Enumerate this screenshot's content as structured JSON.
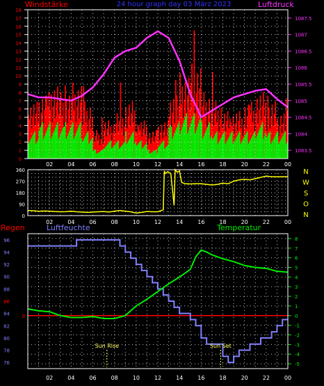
{
  "colors": {
    "background": "#000000",
    "frame": "#ffffff",
    "grid": "#c8c8c8",
    "wind_label": "#ff0000",
    "pressure": "#ff33ff",
    "title": "#3333ff",
    "gust": "#ff0000",
    "wind_avg": "#00ee00",
    "direction": "#ffff00",
    "compass": "#ffff00",
    "rain": "#ff0000",
    "humidity": "#8080ff",
    "temperature": "#00ee00",
    "temp_label": "#00ee00",
    "sun": "#ffff66"
  },
  "labels": {
    "title": "24 hour graph day  03 März 2023",
    "wind": "Windstärke",
    "pressure": "Luftdruck",
    "rain": "Regen",
    "humidity": "Luftfeuchte",
    "temperature": "Temperatur",
    "sunrise": "Sun Rise",
    "sunset": "Sun Set"
  },
  "chart_data": [
    {
      "type": "bar",
      "title": "24 hour graph day  03 März 2023",
      "x_ticks": [
        "02",
        "04",
        "06",
        "08",
        "10",
        "12",
        "14",
        "16",
        "18",
        "20",
        "22",
        "00"
      ],
      "xlim_hours": [
        0,
        24
      ],
      "y_left_label": "Windstärke",
      "y_left_ticks": [
        "0",
        "1",
        "2",
        "3",
        "4",
        "5",
        "6",
        "7",
        "8",
        "9",
        "10",
        "11",
        "12",
        "13",
        "14",
        "15",
        "16",
        "17",
        "18"
      ],
      "y_left_lim": [
        0,
        18
      ],
      "y_right_label": "Luftdruck",
      "y_right_ticks": [
        "1083.5",
        "1084",
        "1084.5",
        "1085",
        "1085.5",
        "1086",
        "1086.5",
        "1087",
        "1087.5"
      ],
      "y_right_lim": [
        1083.25,
        1087.75
      ],
      "grid": true,
      "series": [
        {
          "name": "Windstärke",
          "kind": "gust",
          "values_hourly": [
            6,
            7,
            8,
            7,
            8,
            6,
            3,
            4,
            5,
            6,
            4,
            3,
            4,
            7,
            9,
            10,
            7,
            6,
            5,
            5,
            6,
            7,
            6,
            5
          ]
        },
        {
          "name": "Windstärke",
          "kind": "average",
          "values_hourly": [
            3,
            4,
            4,
            4,
            4,
            3,
            1,
            2,
            2,
            3,
            2,
            1,
            2,
            4,
            5,
            5,
            4,
            3,
            3,
            3,
            3,
            4,
            3,
            3
          ]
        },
        {
          "name": "Luftdruck",
          "x_hours": [
            0,
            1,
            2,
            3,
            4,
            5,
            6,
            7,
            8,
            9,
            10,
            11,
            12,
            13,
            14,
            15,
            16,
            17,
            18,
            19,
            20,
            21,
            22,
            23,
            24
          ],
          "values": [
            1085.2,
            1085.1,
            1085.1,
            1085.05,
            1085.0,
            1085.15,
            1085.4,
            1085.8,
            1086.3,
            1086.5,
            1086.6,
            1086.9,
            1087.1,
            1086.9,
            1086.2,
            1085.2,
            1084.5,
            1084.7,
            1084.9,
            1085.1,
            1085.2,
            1085.3,
            1085.35,
            1085.05,
            1084.8
          ]
        }
      ]
    },
    {
      "type": "line",
      "title": "",
      "x_ticks": [
        "02",
        "04",
        "06",
        "08",
        "10",
        "12",
        "14",
        "16",
        "18",
        "20",
        "22",
        "00"
      ],
      "y_ticks": [
        "0",
        "90",
        "180",
        "270",
        "360"
      ],
      "ylim": [
        0,
        360
      ],
      "compass": [
        "N",
        "W",
        "S",
        "O",
        "N"
      ],
      "grid": true,
      "series": [
        {
          "name": "",
          "x_hours": [
            0,
            0.5,
            1,
            1.5,
            2,
            2.5,
            3,
            3.5,
            4,
            4.5,
            5,
            5.5,
            6,
            6.5,
            7,
            7.5,
            8,
            8.5,
            9,
            9.5,
            10,
            10.5,
            11,
            11.5,
            12,
            12.5,
            12.6,
            12.7,
            12.9,
            13.0,
            13.2,
            13.5,
            13.6,
            13.8,
            14.0,
            14.2,
            14.5,
            15,
            15.5,
            16,
            16.5,
            17,
            17.5,
            18,
            18.5,
            19,
            19.5,
            20,
            20.5,
            21,
            21.5,
            22,
            22.5,
            23,
            23.5,
            24
          ],
          "values": [
            40,
            38,
            34,
            36,
            35,
            32,
            30,
            31,
            35,
            30,
            28,
            25,
            28,
            30,
            32,
            28,
            35,
            40,
            35,
            30,
            20,
            25,
            32,
            30,
            30,
            45,
            350,
            330,
            345,
            340,
            330,
            80,
            360,
            340,
            350,
            260,
            250,
            248,
            250,
            250,
            245,
            240,
            245,
            255,
            250,
            270,
            280,
            285,
            280,
            290,
            300,
            310,
            305,
            305,
            305,
            305
          ]
        }
      ]
    },
    {
      "type": "line",
      "title": "",
      "x_ticks": [
        "02",
        "04",
        "06",
        "08",
        "10",
        "12",
        "14",
        "16",
        "18",
        "20",
        "22",
        "00"
      ],
      "y_left_label": "Luftfeuchte",
      "y_left_ticks": [
        "76",
        "78",
        "80",
        "82",
        "84",
        "86",
        "88",
        "90",
        "92",
        "94",
        "96"
      ],
      "y_left_lim": [
        75,
        97
      ],
      "y_right_label": "Temperatur",
      "y_right_ticks": [
        "-5",
        "-4",
        "-3",
        "-2",
        "-1",
        "0",
        "1",
        "2",
        "3",
        "4",
        "5",
        "6",
        "7",
        "8"
      ],
      "y_right_lim": [
        -5.5,
        8.5
      ],
      "rain_label": "Regen",
      "rain_tick": "0",
      "grid": true,
      "annotations": [
        {
          "text": "Sun Rise",
          "x_hour": 7.3
        },
        {
          "text": "Sun Set",
          "x_hour": 17.8
        }
      ],
      "series": [
        {
          "name": "Luftfeuchte",
          "x_hours": [
            0,
            4,
            4.5,
            8,
            8.5,
            9,
            9.5,
            10,
            10.5,
            11,
            11.5,
            12,
            12.5,
            13,
            13.5,
            14,
            14.5,
            15,
            15.5,
            16,
            16.5,
            17,
            17.5,
            18,
            18.5,
            19,
            19.5,
            20,
            20.5,
            21,
            21.5,
            22,
            22.5,
            23,
            23.5,
            24
          ],
          "values": [
            95,
            95,
            96,
            96,
            95,
            94,
            93,
            92,
            91,
            90,
            89,
            88,
            87,
            86,
            85,
            84,
            84,
            83,
            82,
            80,
            79,
            79,
            79,
            77,
            76,
            77,
            78,
            78,
            79,
            79,
            80,
            80,
            81,
            82,
            83,
            83
          ]
        },
        {
          "name": "Temperatur",
          "x_hours": [
            0,
            1,
            2,
            3,
            4,
            5,
            6,
            7,
            8,
            9,
            10,
            11,
            12,
            13,
            14,
            15,
            15.5,
            16,
            16.5,
            17,
            18,
            19,
            20,
            21,
            22,
            23,
            24
          ],
          "values": [
            0.7,
            0.5,
            0.4,
            0.0,
            -0.2,
            -0.2,
            -0.1,
            -0.3,
            -0.3,
            0.0,
            1.0,
            1.7,
            2.5,
            3.3,
            4.0,
            4.8,
            6.1,
            6.8,
            6.6,
            6.3,
            5.9,
            5.6,
            5.2,
            5.0,
            4.9,
            4.6,
            4.5
          ]
        },
        {
          "name": "Regen",
          "x_hours": [
            0,
            24
          ],
          "values": [
            0,
            0
          ]
        }
      ]
    }
  ]
}
